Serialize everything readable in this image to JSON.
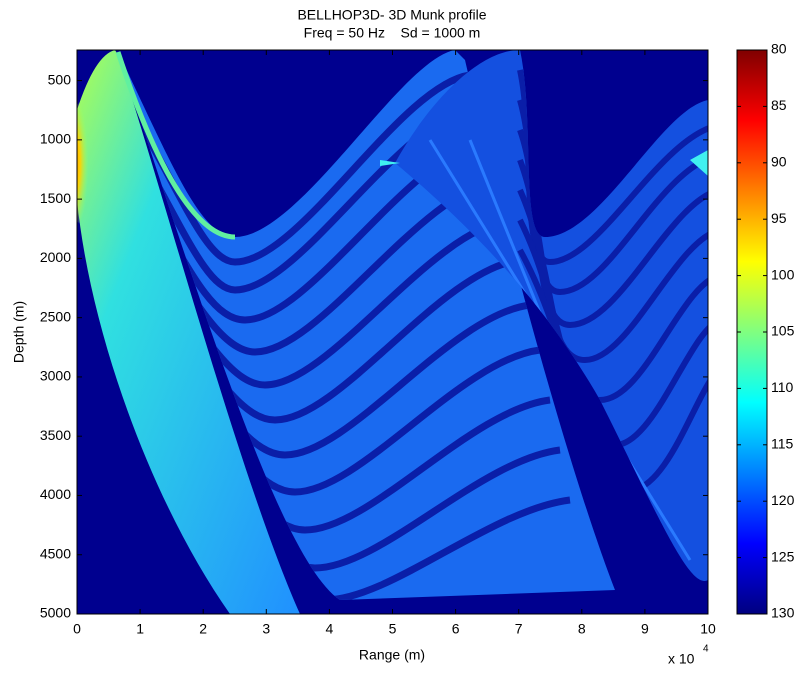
{
  "chart_data": {
    "type": "heatmap",
    "title": "BELLHOP3D- 3D Munk profile",
    "subtitle": "Freq = 50 Hz    Sd = 1000 m",
    "x_label": "Range (m)",
    "y_label": "Depth (m)",
    "x_multiplier": "x 10",
    "x_multiplier_exponent": "4",
    "xlim": [
      0,
      10
    ],
    "xticks": [
      0,
      1,
      2,
      3,
      4,
      5,
      6,
      7,
      8,
      9,
      10
    ],
    "ylim": [
      242,
      5000
    ],
    "y_reversed": true,
    "yticks": [
      500,
      1000,
      1500,
      2000,
      2500,
      3000,
      3500,
      4000,
      4500,
      5000
    ],
    "colormap": "jet",
    "colormap_reversed": true,
    "clim": [
      80,
      130
    ],
    "cticks": [
      80,
      85,
      90,
      95,
      100,
      105,
      110,
      115,
      120,
      125,
      130
    ]
  }
}
